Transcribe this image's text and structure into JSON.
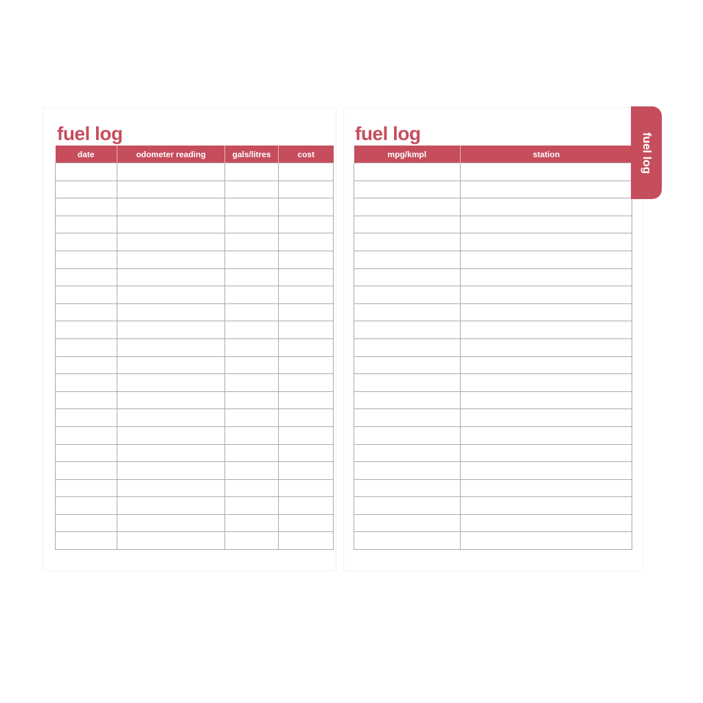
{
  "left_page": {
    "title": "fuel log",
    "columns": [
      "date",
      "odometer reading",
      "gals/litres",
      "cost"
    ]
  },
  "right_page": {
    "title": "fuel log",
    "columns": [
      "mpg/kmpl",
      "station"
    ]
  },
  "tab": {
    "label": "fuel log"
  },
  "colors": {
    "accent": "#c64d5c",
    "grid": "#a9a9a9"
  }
}
